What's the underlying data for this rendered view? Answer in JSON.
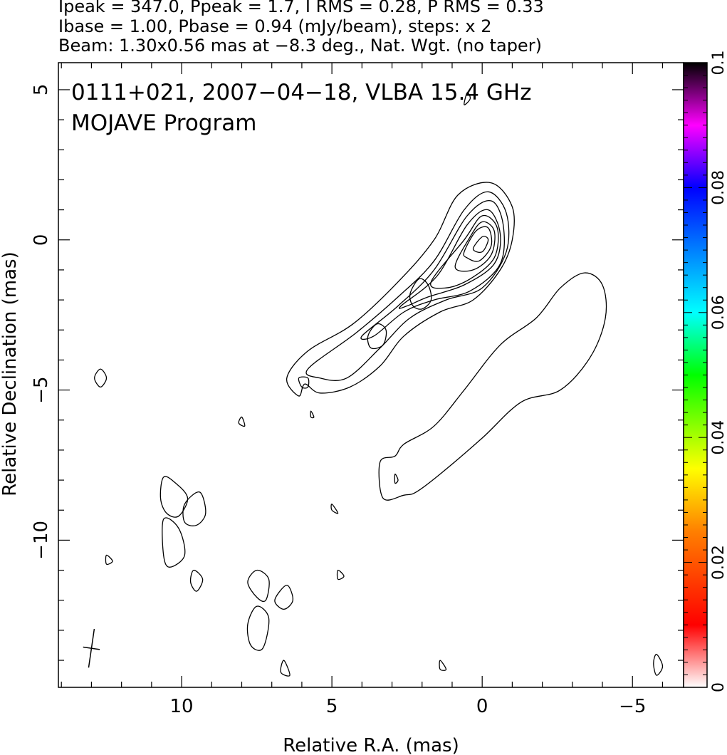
{
  "header": {
    "line1": "Ipeak = 347.0, Ppeak = 1.7, I RMS = 0.28, P RMS = 0.33",
    "line2": "Ibase = 1.00, Pbase = 0.94 (mJy/beam), steps: x 2",
    "line3": "Beam: 1.30x0.56 mas at −8.3 deg., Nat. Wgt. (no taper)"
  },
  "chart_data": {
    "type": "contour",
    "title": "0111+021, 2007−04−18, VLBA 15.4 GHz",
    "subtitle": "MOJAVE Program",
    "xlabel": "Relative R.A. (mas)",
    "ylabel": "Relative Declination (mas)",
    "xlim": [
      14.1,
      -6.7
    ],
    "ylim": [
      -14.9,
      5.9
    ],
    "x_reversed": true,
    "xticks": [
      10,
      5,
      0,
      -5
    ],
    "xtick_labels": [
      "10",
      "5",
      "0",
      "−5"
    ],
    "yticks": [
      5,
      0,
      -5,
      -10
    ],
    "ytick_labels": [
      "5",
      "0",
      "−5",
      "−10"
    ],
    "beam": {
      "major_mas": 1.3,
      "minor_mas": 0.56,
      "pa_deg": -8.3,
      "center": [
        13.0,
        -13.6
      ]
    },
    "colorbar": {
      "min": 0,
      "max": 0.1,
      "ticks": [
        0,
        0.02,
        0.04,
        0.06,
        0.08,
        0.1
      ],
      "tick_labels": [
        "0",
        "0.02",
        "0.04",
        "0.06",
        "0.08",
        "0.1"
      ],
      "colors": [
        "#ffffff",
        "#ff0000",
        "#ff8000",
        "#ffff00",
        "#00ff00",
        "#00ffff",
        "#0080ff",
        "#0000ff",
        "#ff00ff",
        "#000000"
      ]
    },
    "contours": [
      {
        "name": "jet-core-c1",
        "pts": [
          [
            6.1,
            -5.2
          ],
          [
            6.5,
            -4.6
          ],
          [
            5.8,
            -3.7
          ],
          [
            4.3,
            -2.8
          ],
          [
            2.8,
            -1.4
          ],
          [
            1.6,
            0.0
          ],
          [
            0.8,
            1.5
          ],
          [
            -0.3,
            1.9
          ],
          [
            -1.0,
            1.1
          ],
          [
            -1.0,
            0.0
          ],
          [
            -0.6,
            -1.0
          ],
          [
            0.3,
            -2.0
          ],
          [
            1.4,
            -2.4
          ],
          [
            2.6,
            -3.2
          ],
          [
            3.4,
            -4.2
          ],
          [
            4.4,
            -4.9
          ],
          [
            5.4,
            -5.1
          ],
          [
            5.9,
            -4.8
          ]
        ]
      },
      {
        "name": "jet-core-c2",
        "pts": [
          [
            5.8,
            -4.3
          ],
          [
            4.2,
            -3.1
          ],
          [
            2.8,
            -1.9
          ],
          [
            1.6,
            -0.7
          ],
          [
            0.6,
            1.0
          ],
          [
            -0.2,
            1.6
          ],
          [
            -0.8,
            0.9
          ],
          [
            -0.8,
            -0.4
          ],
          [
            0.0,
            -1.6
          ],
          [
            1.2,
            -2.0
          ],
          [
            2.4,
            -2.6
          ],
          [
            3.4,
            -3.6
          ],
          [
            4.5,
            -4.6
          ],
          [
            5.4,
            -4.6
          ]
        ]
      },
      {
        "name": "jet-core-c3",
        "pts": [
          [
            4.0,
            -3.2
          ],
          [
            2.8,
            -2.2
          ],
          [
            1.6,
            -1.0
          ],
          [
            0.5,
            0.8
          ],
          [
            -0.3,
            1.3
          ],
          [
            -0.7,
            0.5
          ],
          [
            -0.6,
            -0.8
          ],
          [
            0.4,
            -1.7
          ],
          [
            1.6,
            -2.0
          ],
          [
            2.6,
            -2.4
          ],
          [
            3.6,
            -3.2
          ]
        ]
      },
      {
        "name": "jet-core-c4",
        "pts": [
          [
            2.7,
            -2.2
          ],
          [
            1.5,
            -1.2
          ],
          [
            0.5,
            0.5
          ],
          [
            -0.2,
            1.0
          ],
          [
            -0.6,
            0.2
          ],
          [
            -0.4,
            -0.8
          ],
          [
            0.6,
            -1.5
          ],
          [
            1.8,
            -1.9
          ],
          [
            2.5,
            -2.2
          ]
        ]
      },
      {
        "name": "jet-core-c5",
        "pts": [
          [
            1.7,
            -1.4
          ],
          [
            0.6,
            0.0
          ],
          [
            0.0,
            0.8
          ],
          [
            -0.5,
            0.4
          ],
          [
            -0.4,
            -0.6
          ],
          [
            0.4,
            -1.3
          ],
          [
            1.2,
            -1.6
          ]
        ]
      },
      {
        "name": "jet-core-c6",
        "pts": [
          [
            0.9,
            -0.9
          ],
          [
            0.4,
            0.1
          ],
          [
            0.0,
            0.6
          ],
          [
            -0.4,
            0.3
          ],
          [
            -0.3,
            -0.5
          ],
          [
            0.3,
            -1.0
          ]
        ]
      },
      {
        "name": "jet-core-c7",
        "pts": [
          [
            0.6,
            -0.4
          ],
          [
            0.2,
            0.3
          ],
          [
            -0.2,
            0.4
          ],
          [
            -0.3,
            -0.2
          ],
          [
            0.1,
            -0.7
          ],
          [
            0.5,
            -0.6
          ]
        ]
      },
      {
        "name": "jet-core-c8",
        "pts": [
          [
            0.3,
            -0.3
          ],
          [
            0.0,
            0.1
          ],
          [
            -0.2,
            0.0
          ],
          [
            0.0,
            -0.4
          ]
        ]
      },
      {
        "name": "knot-a",
        "pts": [
          [
            2.1,
            -1.3
          ],
          [
            2.4,
            -1.8
          ],
          [
            2.3,
            -2.2
          ],
          [
            2.0,
            -2.3
          ],
          [
            1.7,
            -2.0
          ],
          [
            1.8,
            -1.5
          ]
        ]
      },
      {
        "name": "knot-b",
        "pts": [
          [
            3.5,
            -2.8
          ],
          [
            3.8,
            -3.2
          ],
          [
            3.7,
            -3.6
          ],
          [
            3.3,
            -3.5
          ],
          [
            3.2,
            -3.0
          ]
        ]
      },
      {
        "name": "knot-c",
        "pts": [
          [
            6.1,
            -4.6
          ],
          [
            6.0,
            -4.9
          ],
          [
            5.8,
            -4.9
          ],
          [
            5.8,
            -4.6
          ]
        ]
      },
      {
        "name": "extended-lobe",
        "pts": [
          [
            3.4,
            -7.4
          ],
          [
            3.3,
            -8.6
          ],
          [
            2.6,
            -8.5
          ],
          [
            2.2,
            -8.4
          ],
          [
            1.4,
            -7.8
          ],
          [
            0.0,
            -6.6
          ],
          [
            -1.3,
            -5.4
          ],
          [
            -2.6,
            -5.0
          ],
          [
            -3.6,
            -3.9
          ],
          [
            -4.1,
            -2.6
          ],
          [
            -4.0,
            -1.5
          ],
          [
            -3.4,
            -1.1
          ],
          [
            -2.6,
            -1.6
          ],
          [
            -1.8,
            -2.6
          ],
          [
            -0.6,
            -3.5
          ],
          [
            0.6,
            -5.0
          ],
          [
            1.6,
            -6.2
          ],
          [
            2.6,
            -6.8
          ],
          [
            2.9,
            -7.2
          ]
        ]
      },
      {
        "name": "blob-1",
        "pts": [
          [
            10.6,
            -7.9
          ],
          [
            10.2,
            -8.1
          ],
          [
            9.8,
            -8.6
          ],
          [
            10.1,
            -9.2
          ],
          [
            10.5,
            -9.1
          ],
          [
            10.7,
            -8.6
          ]
        ]
      },
      {
        "name": "blob-2",
        "pts": [
          [
            9.4,
            -8.4
          ],
          [
            9.9,
            -8.8
          ],
          [
            9.9,
            -9.4
          ],
          [
            9.5,
            -9.5
          ],
          [
            9.2,
            -9.1
          ]
        ]
      },
      {
        "name": "blob-3",
        "pts": [
          [
            10.6,
            -9.3
          ],
          [
            10.1,
            -9.6
          ],
          [
            9.9,
            -10.5
          ],
          [
            10.4,
            -10.9
          ],
          [
            10.6,
            -10.5
          ]
        ]
      },
      {
        "name": "blob-4",
        "pts": [
          [
            7.5,
            -11.0
          ],
          [
            7.1,
            -11.3
          ],
          [
            7.2,
            -12.0
          ],
          [
            7.5,
            -11.9
          ],
          [
            7.8,
            -11.4
          ]
        ]
      },
      {
        "name": "blob-5",
        "pts": [
          [
            7.5,
            -12.2
          ],
          [
            7.1,
            -12.6
          ],
          [
            7.3,
            -13.6
          ],
          [
            7.7,
            -13.5
          ],
          [
            7.8,
            -12.8
          ]
        ]
      },
      {
        "name": "blob-6",
        "pts": [
          [
            6.5,
            -11.5
          ],
          [
            6.3,
            -12.0
          ],
          [
            6.6,
            -12.3
          ],
          [
            6.9,
            -12.0
          ]
        ]
      },
      {
        "name": "blob-7",
        "pts": [
          [
            12.7,
            -4.3
          ],
          [
            12.5,
            -4.6
          ],
          [
            12.7,
            -4.9
          ],
          [
            12.9,
            -4.6
          ]
        ]
      },
      {
        "name": "blob-8",
        "pts": [
          [
            9.6,
            -11.0
          ],
          [
            9.3,
            -11.3
          ],
          [
            9.5,
            -11.7
          ],
          [
            9.7,
            -11.4
          ]
        ]
      },
      {
        "name": "blob-9",
        "pts": [
          [
            8.0,
            -5.9
          ],
          [
            7.9,
            -6.2
          ],
          [
            8.1,
            -6.1
          ]
        ]
      },
      {
        "name": "blob-10",
        "pts": [
          [
            12.5,
            -10.5
          ],
          [
            12.3,
            -10.7
          ],
          [
            12.5,
            -10.8
          ]
        ]
      },
      {
        "name": "blob-11",
        "pts": [
          [
            5.0,
            -8.8
          ],
          [
            4.8,
            -9.1
          ],
          [
            5.0,
            -9.0
          ]
        ]
      },
      {
        "name": "blob-12",
        "pts": [
          [
            4.8,
            -11.0
          ],
          [
            4.6,
            -11.2
          ],
          [
            4.8,
            -11.3
          ]
        ]
      },
      {
        "name": "blob-13",
        "pts": [
          [
            1.4,
            -14.0
          ],
          [
            1.2,
            -14.3
          ],
          [
            1.4,
            -14.3
          ]
        ]
      },
      {
        "name": "blob-14",
        "pts": [
          [
            6.6,
            -14.0
          ],
          [
            6.4,
            -14.5
          ],
          [
            6.7,
            -14.4
          ]
        ]
      },
      {
        "name": "blob-15",
        "pts": [
          [
            -5.8,
            -13.8
          ],
          [
            -6.0,
            -14.2
          ],
          [
            -5.8,
            -14.5
          ],
          [
            -5.7,
            -14.1
          ]
        ]
      },
      {
        "name": "blob-16",
        "pts": [
          [
            0.6,
            4.5
          ],
          [
            0.4,
            4.7
          ],
          [
            0.5,
            4.9
          ]
        ]
      },
      {
        "name": "blob-17",
        "pts": [
          [
            2.9,
            -7.8
          ],
          [
            2.8,
            -8.0
          ],
          [
            2.9,
            -8.1
          ]
        ]
      },
      {
        "name": "blob-18",
        "pts": [
          [
            5.7,
            -5.7
          ],
          [
            5.6,
            -5.9
          ],
          [
            5.7,
            -5.9
          ]
        ]
      }
    ]
  }
}
